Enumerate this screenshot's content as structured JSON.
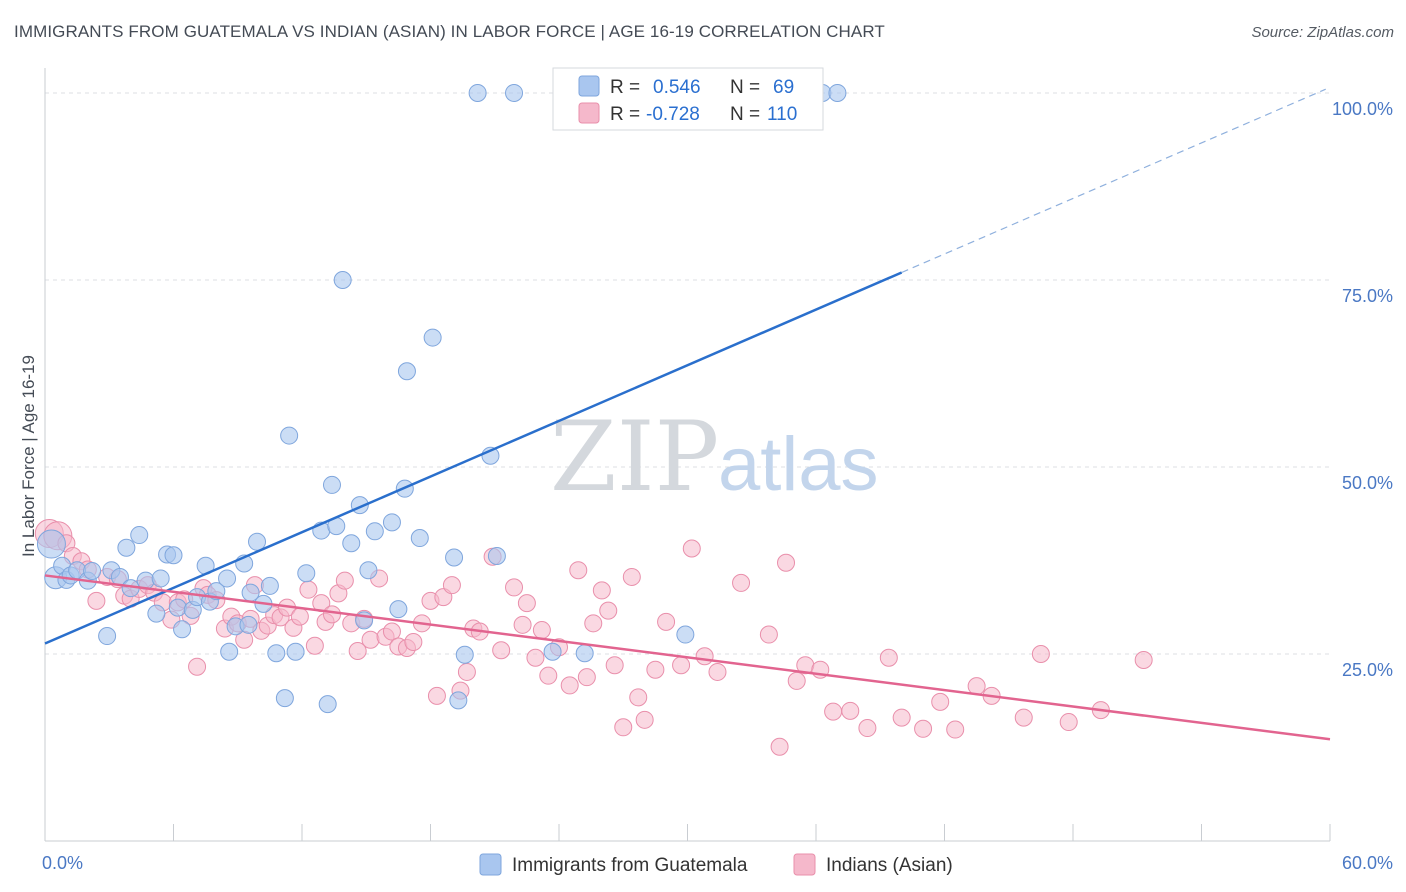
{
  "title": "IMMIGRANTS FROM GUATEMALA VS INDIAN (ASIAN) IN LABOR FORCE | AGE 16-19 CORRELATION CHART",
  "source": "Source: ZipAtlas.com",
  "watermark": {
    "zip": "ZIP",
    "atlas": "atlas"
  },
  "legend_top": [
    {
      "r_label": "R =",
      "r_value": "0.546",
      "n_label": "N =",
      "n_value": "69",
      "color": "#a9c6ef"
    },
    {
      "r_label": "R =",
      "r_value": "-0.728",
      "n_label": "N =",
      "n_value": "110",
      "color": "#f5b8cb"
    }
  ],
  "legend_bottom": [
    "Immigrants from Guatemala",
    "Indians (Asian)"
  ],
  "colors": {
    "blue_fill": "#a9c6ef",
    "blue_stroke": "#7fa6dd",
    "blue_line": "#2a6fcc",
    "pink_fill": "#f5b8cb",
    "pink_stroke": "#e98fab",
    "pink_line": "#e2648f"
  },
  "chart_data": {
    "type": "scatter",
    "title": "IMMIGRANTS FROM GUATEMALA VS INDIAN (ASIAN) IN LABOR FORCE | AGE 16-19 CORRELATION CHART",
    "xlabel": "",
    "ylabel": "In Labor Force | Age 16-19",
    "xlim": [
      0,
      60
    ],
    "ylim": [
      0,
      102
    ],
    "x_ticks_labels": [
      "0.0%",
      "60.0%"
    ],
    "y_ticks": [
      25,
      50,
      75,
      100
    ],
    "y_tick_labels": [
      "25.0%",
      "50.0%",
      "75.0%",
      "100.0%"
    ],
    "grid": true,
    "legend_position": "top-center",
    "series": [
      {
        "name": "Immigrants from Guatemala",
        "R": 0.546,
        "N": 69,
        "trend": {
          "x0": 0,
          "y0": 26.4,
          "x1": 40,
          "y1": 76,
          "dash_x1": 59.8,
          "dash_y1": 100.5
        },
        "points": [
          [
            0.3,
            39.7
          ],
          [
            0.5,
            35.2
          ],
          [
            0.8,
            36.8
          ],
          [
            1.0,
            34.9
          ],
          [
            1.2,
            35.5
          ],
          [
            1.5,
            36.2
          ],
          [
            2.0,
            34.8
          ],
          [
            2.2,
            36.1
          ],
          [
            3.1,
            36.2
          ],
          [
            3.5,
            35.3
          ],
          [
            2.9,
            27.4
          ],
          [
            3.8,
            39.2
          ],
          [
            4.4,
            40.9
          ],
          [
            4.0,
            33.8
          ],
          [
            4.7,
            34.8
          ],
          [
            5.2,
            30.4
          ],
          [
            5.4,
            35.1
          ],
          [
            5.7,
            38.3
          ],
          [
            6.0,
            38.2
          ],
          [
            6.2,
            31.2
          ],
          [
            6.4,
            28.3
          ],
          [
            6.9,
            30.9
          ],
          [
            7.1,
            32.6
          ],
          [
            7.5,
            36.8
          ],
          [
            7.7,
            32.0
          ],
          [
            8.0,
            33.4
          ],
          [
            8.5,
            35.1
          ],
          [
            8.6,
            25.3
          ],
          [
            8.9,
            28.7
          ],
          [
            9.3,
            37.1
          ],
          [
            9.5,
            28.9
          ],
          [
            9.6,
            33.2
          ],
          [
            9.9,
            40.0
          ],
          [
            10.2,
            31.7
          ],
          [
            10.5,
            34.1
          ],
          [
            10.8,
            25.1
          ],
          [
            11.2,
            19.1
          ],
          [
            11.4,
            54.2
          ],
          [
            11.7,
            25.3
          ],
          [
            12.2,
            35.8
          ],
          [
            12.9,
            41.5
          ],
          [
            13.2,
            18.3
          ],
          [
            13.4,
            47.6
          ],
          [
            13.6,
            42.1
          ],
          [
            13.9,
            75.0
          ],
          [
            14.3,
            39.8
          ],
          [
            14.7,
            44.9
          ],
          [
            14.9,
            29.5
          ],
          [
            15.1,
            36.2
          ],
          [
            15.4,
            41.4
          ],
          [
            16.2,
            42.6
          ],
          [
            16.5,
            31.0
          ],
          [
            16.8,
            47.1
          ],
          [
            16.9,
            62.8
          ],
          [
            17.5,
            40.5
          ],
          [
            18.1,
            67.3
          ],
          [
            19.1,
            37.9
          ],
          [
            19.3,
            18.8
          ],
          [
            19.6,
            24.9
          ],
          [
            20.2,
            100.0
          ],
          [
            20.8,
            51.5
          ],
          [
            21.1,
            38.1
          ],
          [
            21.9,
            100.0
          ],
          [
            23.7,
            25.3
          ],
          [
            25.2,
            25.1
          ],
          [
            29.9,
            27.6
          ],
          [
            32.2,
            100.0
          ],
          [
            36.3,
            100.0
          ],
          [
            37.0,
            100.0
          ]
        ]
      },
      {
        "name": "Indians (Asian)",
        "R": -0.728,
        "N": 110,
        "trend": {
          "x0": 0,
          "y0": 35.5,
          "x1": 60,
          "y1": 13.6
        },
        "points": [
          [
            0.2,
            41.1
          ],
          [
            0.6,
            40.8
          ],
          [
            1.0,
            39.8
          ],
          [
            1.3,
            38.1
          ],
          [
            1.7,
            37.4
          ],
          [
            2.0,
            36.3
          ],
          [
            2.4,
            32.1
          ],
          [
            2.9,
            35.3
          ],
          [
            3.4,
            35.0
          ],
          [
            3.7,
            32.8
          ],
          [
            4.0,
            32.4
          ],
          [
            4.4,
            33.7
          ],
          [
            4.8,
            34.2
          ],
          [
            5.1,
            33.2
          ],
          [
            5.5,
            31.9
          ],
          [
            5.9,
            29.6
          ],
          [
            6.2,
            31.9
          ],
          [
            6.5,
            32.3
          ],
          [
            6.8,
            30.1
          ],
          [
            7.1,
            23.3
          ],
          [
            7.4,
            33.8
          ],
          [
            7.6,
            32.9
          ],
          [
            8.0,
            32.2
          ],
          [
            8.4,
            28.4
          ],
          [
            8.7,
            30.0
          ],
          [
            9.0,
            29.1
          ],
          [
            9.3,
            26.9
          ],
          [
            9.6,
            29.7
          ],
          [
            9.8,
            34.2
          ],
          [
            10.1,
            28.1
          ],
          [
            10.4,
            28.8
          ],
          [
            10.7,
            30.2
          ],
          [
            11.0,
            29.9
          ],
          [
            11.3,
            31.2
          ],
          [
            11.6,
            28.5
          ],
          [
            11.9,
            30.0
          ],
          [
            12.3,
            33.6
          ],
          [
            12.6,
            26.1
          ],
          [
            12.9,
            31.8
          ],
          [
            13.1,
            29.3
          ],
          [
            13.4,
            30.3
          ],
          [
            13.7,
            33.1
          ],
          [
            14.0,
            34.8
          ],
          [
            14.3,
            29.1
          ],
          [
            14.6,
            25.4
          ],
          [
            14.9,
            29.7
          ],
          [
            15.2,
            26.9
          ],
          [
            15.6,
            35.1
          ],
          [
            15.9,
            27.3
          ],
          [
            16.2,
            28.0
          ],
          [
            16.5,
            26.0
          ],
          [
            16.9,
            25.8
          ],
          [
            17.2,
            26.6
          ],
          [
            17.6,
            29.1
          ],
          [
            18.0,
            32.1
          ],
          [
            18.3,
            19.4
          ],
          [
            18.6,
            32.6
          ],
          [
            19.0,
            34.2
          ],
          [
            19.4,
            20.1
          ],
          [
            19.7,
            22.6
          ],
          [
            20.0,
            28.4
          ],
          [
            20.3,
            28.0
          ],
          [
            20.9,
            38.0
          ],
          [
            21.3,
            25.5
          ],
          [
            21.9,
            33.9
          ],
          [
            22.3,
            28.9
          ],
          [
            22.5,
            31.8
          ],
          [
            22.9,
            24.5
          ],
          [
            23.2,
            28.2
          ],
          [
            23.5,
            22.1
          ],
          [
            24.0,
            25.9
          ],
          [
            24.5,
            20.8
          ],
          [
            24.9,
            36.2
          ],
          [
            25.3,
            21.9
          ],
          [
            25.6,
            29.1
          ],
          [
            26.0,
            33.5
          ],
          [
            26.3,
            30.8
          ],
          [
            26.6,
            23.5
          ],
          [
            27.0,
            15.2
          ],
          [
            27.4,
            35.3
          ],
          [
            27.7,
            19.2
          ],
          [
            28.0,
            16.2
          ],
          [
            28.5,
            22.9
          ],
          [
            29.0,
            29.3
          ],
          [
            29.7,
            23.5
          ],
          [
            30.2,
            39.1
          ],
          [
            30.8,
            24.7
          ],
          [
            31.4,
            22.6
          ],
          [
            32.5,
            34.5
          ],
          [
            33.8,
            27.6
          ],
          [
            34.3,
            12.6
          ],
          [
            34.6,
            37.2
          ],
          [
            35.1,
            21.4
          ],
          [
            35.5,
            23.5
          ],
          [
            36.2,
            22.9
          ],
          [
            36.8,
            17.3
          ],
          [
            37.6,
            17.4
          ],
          [
            38.4,
            15.1
          ],
          [
            39.4,
            24.5
          ],
          [
            40.0,
            16.5
          ],
          [
            41.0,
            15.0
          ],
          [
            41.8,
            18.6
          ],
          [
            42.5,
            14.9
          ],
          [
            43.5,
            20.7
          ],
          [
            44.2,
            19.4
          ],
          [
            45.7,
            16.5
          ],
          [
            46.5,
            25.0
          ],
          [
            47.8,
            15.9
          ],
          [
            49.3,
            17.5
          ],
          [
            51.3,
            24.2
          ]
        ]
      }
    ]
  }
}
